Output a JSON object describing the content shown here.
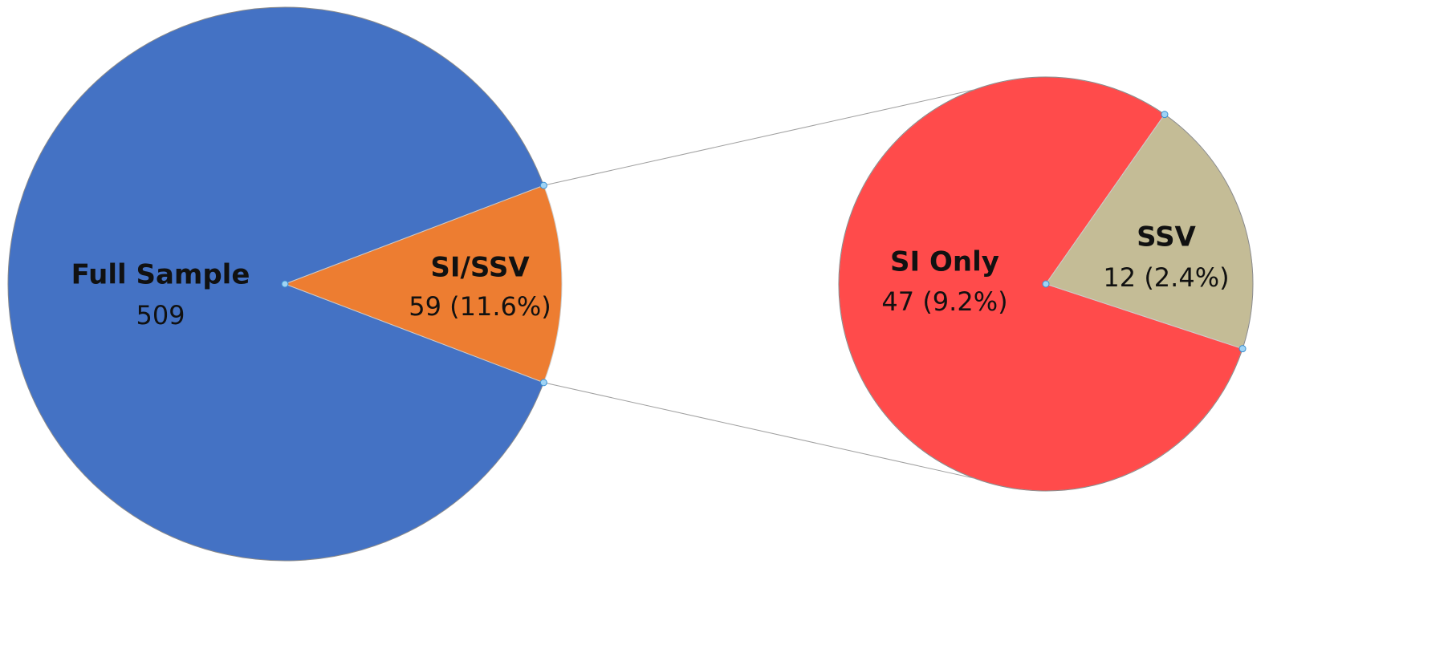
{
  "chart_data": {
    "type": "pie-of-pie",
    "total": {
      "name": "Full Sample",
      "value": 509,
      "color": "#4472c4"
    },
    "group": {
      "name": "SI/SSV",
      "value": 59,
      "value_label": "59 (11.6%)",
      "color": "#ed7d31"
    },
    "breakdown": {
      "names": [
        "SI Only",
        "SSV"
      ],
      "values": [
        47,
        12
      ],
      "value_labels": [
        "47 (9.2%)",
        "12 (2.4%)"
      ],
      "colors": [
        "#ff4b4b",
        "#c4bc96"
      ]
    }
  }
}
